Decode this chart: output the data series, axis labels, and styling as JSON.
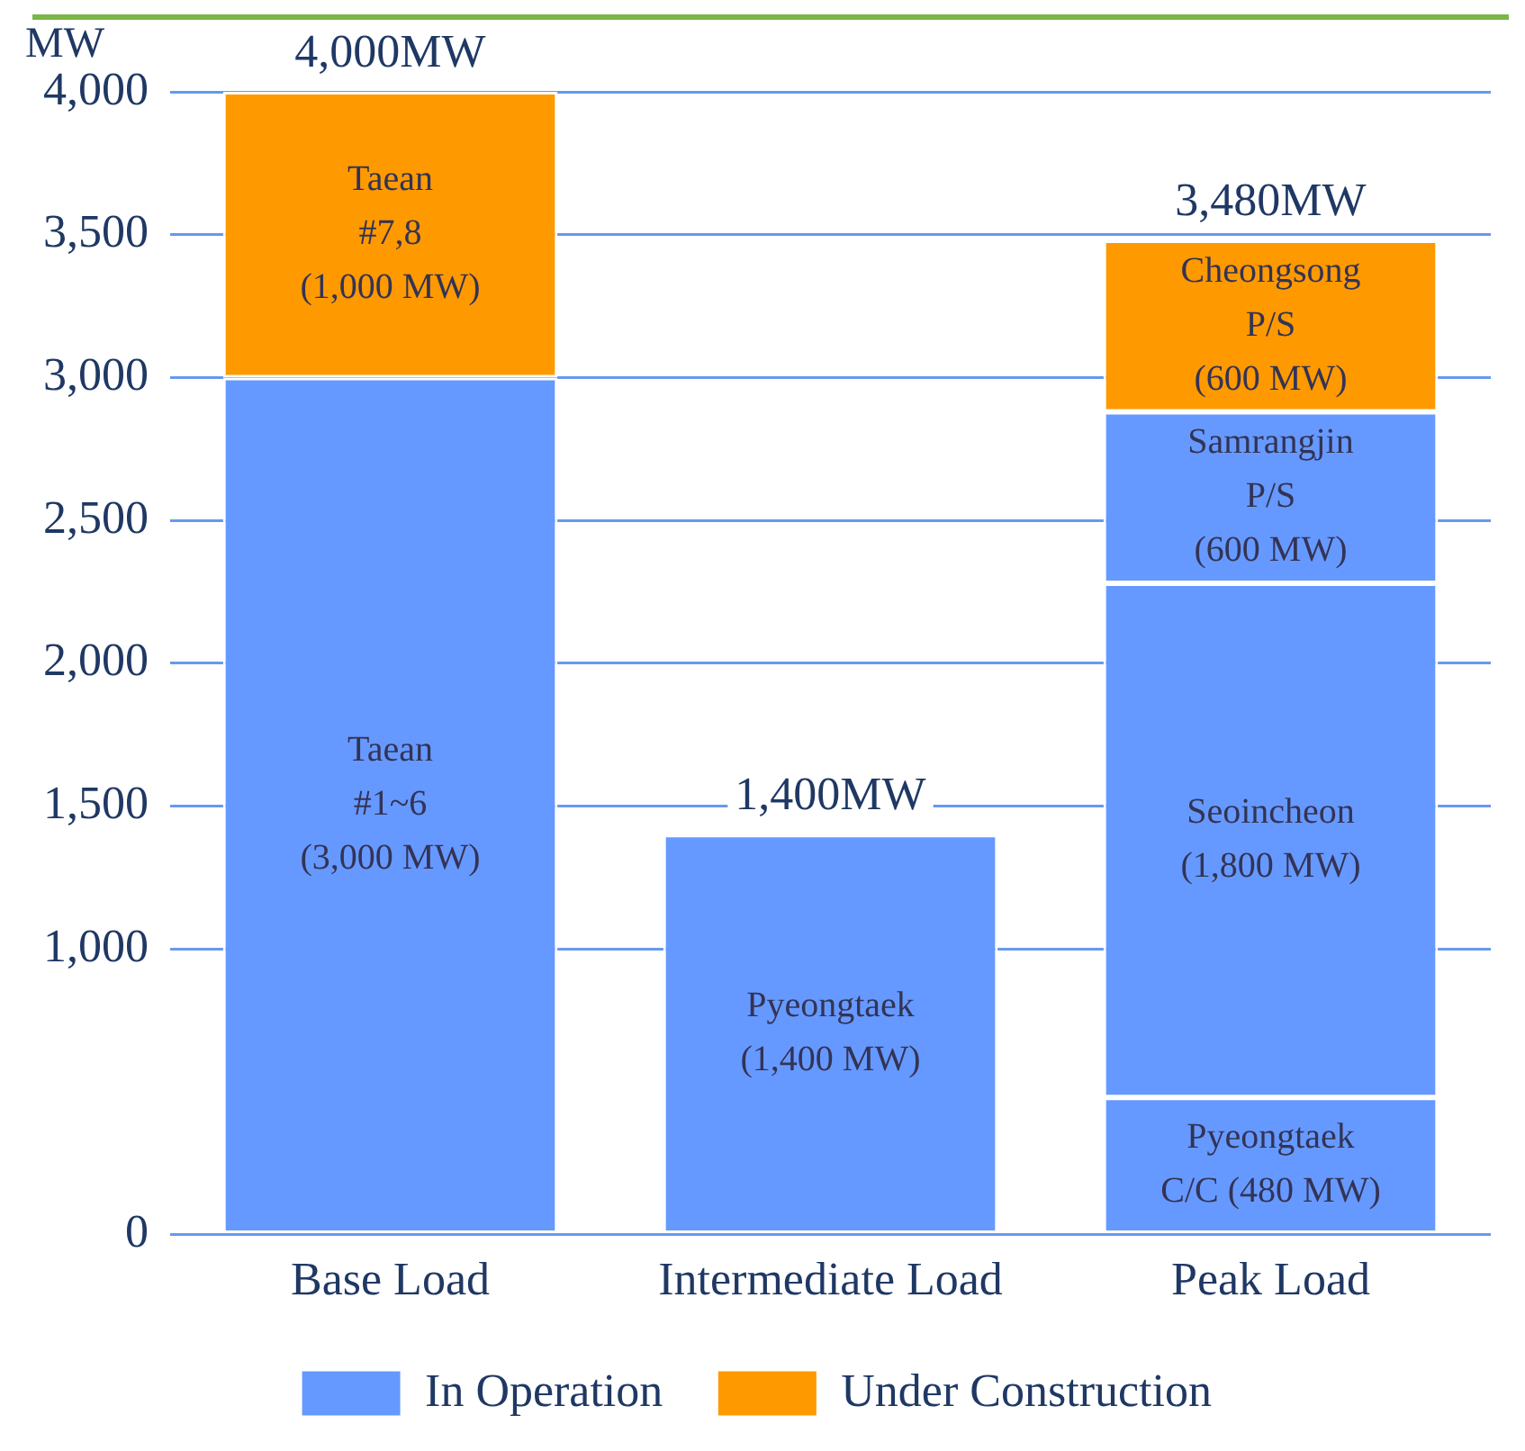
{
  "chart_data": {
    "type": "bar",
    "stacked": true,
    "ylabel": "MW",
    "categories": [
      "Base Load",
      "Intermediate Load",
      "Peak Load"
    ],
    "series": [
      {
        "name": "In Operation",
        "color": "#6699ff",
        "values": [
          3000,
          1400,
          480
        ],
        "value_labels": [
          "Taean\n#1~6\n(3,000 MW)",
          "Pyeongtaek\n(1,400 MW)",
          "Pyeongtaek\nC/C (480 MW)"
        ]
      },
      {
        "color": "#6699ff",
        "values": [
          null,
          null,
          1800
        ],
        "value_labels": [
          null,
          null,
          "Seoincheon\n(1,800 MW)"
        ]
      },
      {
        "color": "#6699ff",
        "values": [
          null,
          null,
          600
        ],
        "value_labels": [
          null,
          null,
          "Samrangjin\nP/S\n(600 MW)"
        ]
      },
      {
        "name": "Under Construction",
        "color": "#ff9900",
        "values": [
          1000,
          null,
          600
        ],
        "value_labels": [
          "Taean\n#7,8\n(1,000 MW)",
          null,
          "Cheongsong\nP/S\n(600 MW)"
        ]
      }
    ],
    "totals": [
      "4,000MW",
      "1,400MW",
      "3,480MW"
    ],
    "ylim": [
      0,
      4000
    ],
    "yticks": [
      0,
      {
        "value": 1000,
        "label": "1,000"
      },
      {
        "value": 1500,
        "label": "1,500"
      },
      {
        "value": 2000,
        "label": "2,000"
      },
      {
        "value": 2500,
        "label": "2,500"
      },
      {
        "value": 3000,
        "label": "3,000"
      },
      {
        "value": 3500,
        "label": "3,500"
      },
      {
        "value": 4000,
        "label": "4,000"
      }
    ],
    "grid": "y",
    "legend": "bottom"
  }
}
